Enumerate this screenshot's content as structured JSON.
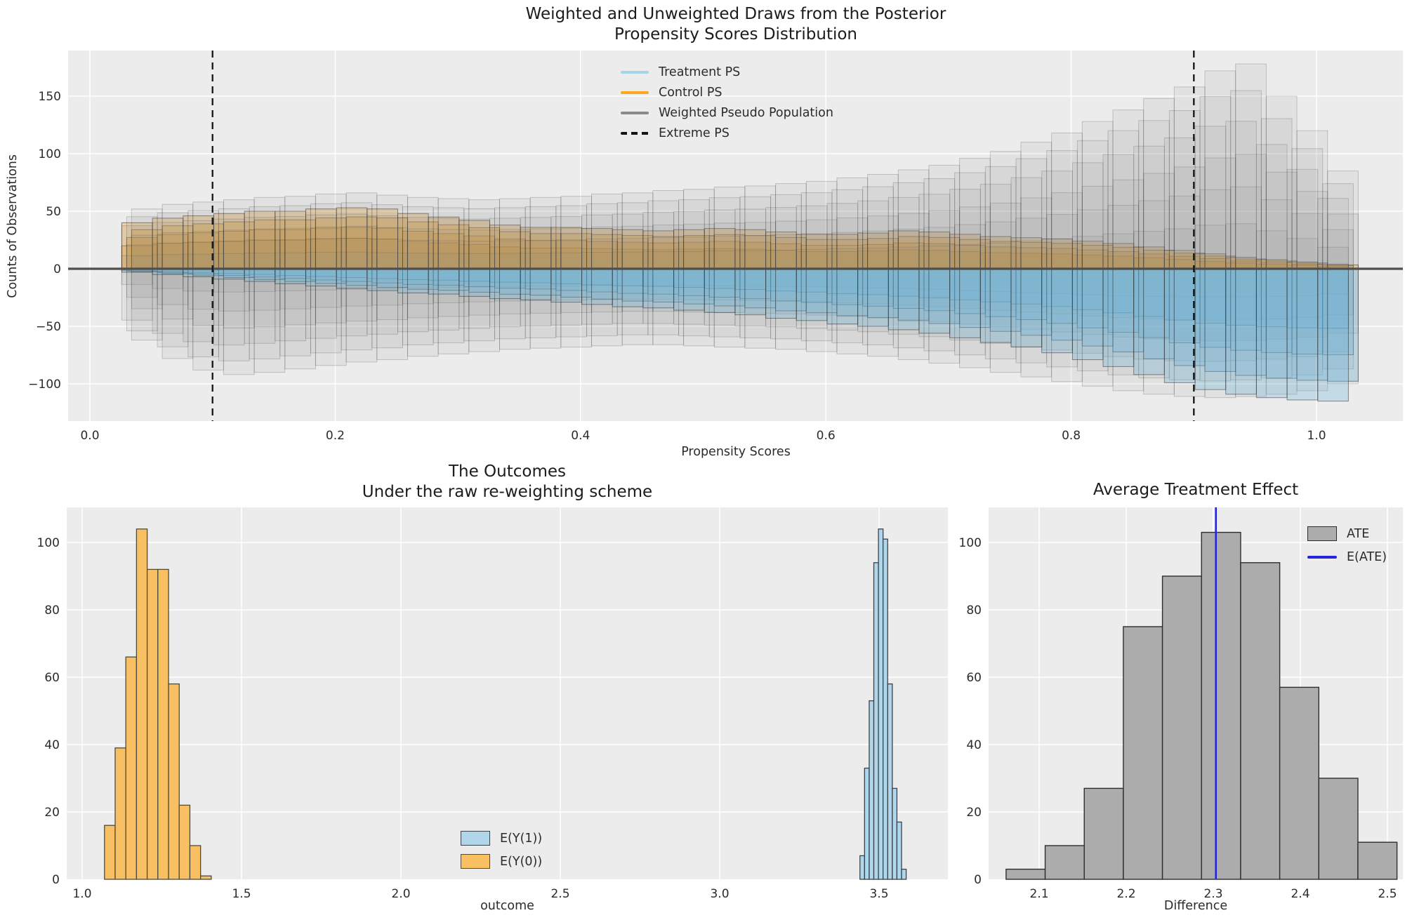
{
  "figure": {
    "background": "#ffffff",
    "axes_background": "#ececec",
    "grid_color": "#ffffff",
    "text_color": "#2b2b2b"
  },
  "charts": {
    "propensity": {
      "type": "mirrored-histogram-posterior-draws",
      "title_line1": "Weighted and Unweighted Draws from the Posterior",
      "title_line2": "Propensity Scores Distribution",
      "xlabel": "Propensity Scores",
      "ylabel": "Counts of Observations",
      "xticks": [
        0.0,
        0.2,
        0.4,
        0.6,
        0.8,
        1.0
      ],
      "xtick_labels": [
        "0.0",
        "0.2",
        "0.4",
        "0.6",
        "0.8",
        "1.0"
      ],
      "yticks": [
        -100,
        -50,
        0,
        50,
        100,
        150
      ],
      "ytick_labels": [
        "−100",
        "−50",
        "0",
        "50",
        "100",
        "150"
      ],
      "ylim": [
        -132,
        190
      ],
      "xlim": [
        -0.018,
        1.07
      ],
      "extreme_ps": [
        0.1,
        0.9
      ],
      "legend": [
        {
          "label": "Treatment PS",
          "color": "#a3d6ec",
          "style": "line"
        },
        {
          "label": "Control PS",
          "color": "#ffa71e",
          "style": "line"
        },
        {
          "label": "Weighted Pseudo Population",
          "color": "#8a8a8a",
          "style": "line"
        },
        {
          "label": "Extreme PS",
          "color": "#141414",
          "style": "dashed-line"
        }
      ],
      "bins": {
        "start": 0.03,
        "width": 0.025,
        "count": 40
      },
      "control_ps_upper": [
        40,
        44,
        46,
        48,
        50,
        50,
        52,
        53,
        52,
        48,
        45,
        42,
        38,
        36,
        36,
        35,
        34,
        33,
        34,
        35,
        34,
        32,
        30,
        30,
        31,
        33,
        32,
        30,
        28,
        27,
        26,
        24,
        22,
        19,
        16,
        13,
        10,
        8,
        6,
        4
      ],
      "treatment_ps_lower": [
        -3,
        -5,
        -7,
        -9,
        -11,
        -13,
        -15,
        -17,
        -19,
        -21,
        -22,
        -24,
        -26,
        -27,
        -29,
        -31,
        -33,
        -34,
        -36,
        -38,
        -40,
        -43,
        -45,
        -48,
        -50,
        -53,
        -56,
        -60,
        -64,
        -68,
        -73,
        -79,
        -85,
        -92,
        -99,
        -105,
        -109,
        -112,
        -114,
        -115
      ],
      "weighted_upper": [
        52,
        56,
        58,
        60,
        62,
        63,
        65,
        66,
        64,
        62,
        61,
        60,
        61,
        62,
        63,
        65,
        66,
        68,
        69,
        71,
        72,
        74,
        76,
        79,
        82,
        86,
        90,
        96,
        102,
        110,
        118,
        128,
        138,
        148,
        158,
        172,
        178,
        150,
        120,
        85
      ],
      "weighted_lower": [
        -62,
        -78,
        -88,
        -92,
        -90,
        -87,
        -84,
        -81,
        -79,
        -76,
        -74,
        -72,
        -70,
        -69,
        -68,
        -67,
        -66,
        -66,
        -67,
        -68,
        -69,
        -70,
        -72,
        -74,
        -76,
        -79,
        -82,
        -86,
        -90,
        -94,
        -98,
        -102,
        -106,
        -109,
        -111,
        -112,
        -111,
        -109,
        -106,
        -100
      ],
      "colors": {
        "control_fill": "#e8991c",
        "treatment_fill": "#6fb4d6",
        "weighted_fill": "#8a8a8a",
        "bar_edge": "#282828",
        "zero_line": "#4f4f4f",
        "extreme_line": "#141414"
      }
    },
    "outcomes": {
      "type": "histogram",
      "title_line1": "The Outcomes",
      "title_line2": "Under the raw re-weighting scheme",
      "xlabel": "outcome",
      "xticks": [
        1.0,
        1.5,
        2.0,
        2.5,
        3.0,
        3.5
      ],
      "xtick_labels": [
        "1.0",
        "1.5",
        "2.0",
        "2.5",
        "3.0",
        "3.5"
      ],
      "yticks": [
        0,
        20,
        40,
        60,
        80,
        100
      ],
      "ytick_labels": [
        "0",
        "20",
        "40",
        "60",
        "80",
        "100"
      ],
      "ylim": [
        0,
        110
      ],
      "series": [
        {
          "name": "E(Y(1))",
          "fill": "#afd6eb",
          "edge": "#3c4248",
          "bin_start": 3.44,
          "bin_width": 0.0145,
          "values": [
            7,
            33,
            53,
            94,
            104,
            101,
            58,
            27,
            17,
            3
          ]
        },
        {
          "name": "E(Y(0))",
          "fill": "#f8c063",
          "edge": "#4f4c3c",
          "bin_start": 1.07,
          "bin_width": 0.0335,
          "values": [
            16,
            39,
            66,
            104,
            92,
            92,
            58,
            22,
            10,
            1
          ]
        }
      ]
    },
    "ate": {
      "type": "histogram",
      "title": "Average Treatment Effect",
      "xlabel": "Difference",
      "xticks": [
        2.1,
        2.2,
        2.3,
        2.4,
        2.5
      ],
      "xtick_labels": [
        "2.1",
        "2.2",
        "2.3",
        "2.4",
        "2.5"
      ],
      "yticks": [
        0,
        20,
        40,
        60,
        80,
        100
      ],
      "ytick_labels": [
        "0",
        "20",
        "40",
        "60",
        "80",
        "100"
      ],
      "ylim": [
        0,
        110
      ],
      "bin_start": 2.062,
      "bin_width": 0.0449,
      "values": [
        3,
        10,
        27,
        75,
        90,
        103,
        94,
        57,
        30,
        11
      ],
      "e_ate": 2.303,
      "bar_fill": "#acacac",
      "bar_edge": "#2e2e2e",
      "line_color": "#2525e0",
      "legend": [
        {
          "label": "ATE",
          "style": "patch"
        },
        {
          "label": "E(ATE)",
          "style": "line"
        }
      ]
    }
  }
}
